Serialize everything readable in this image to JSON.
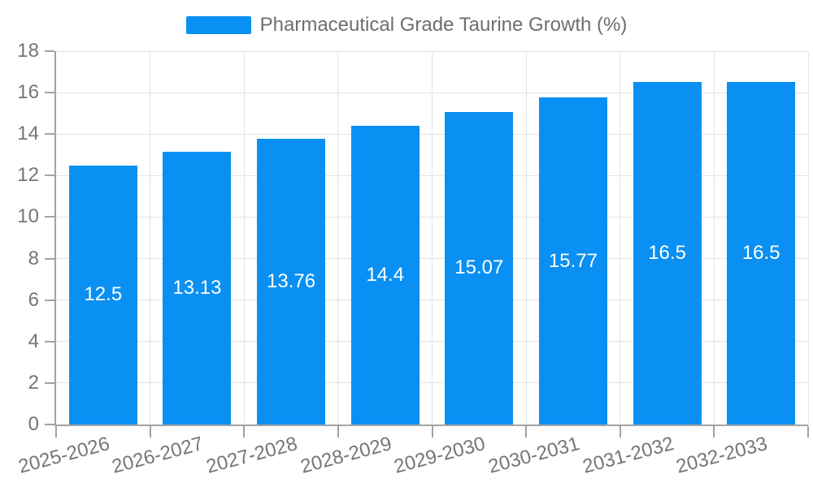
{
  "legend": {
    "items": [
      {
        "label": "Pharmaceutical Grade Taurine Growth (%)",
        "color": "#0a90f2"
      }
    ]
  },
  "chart_data": {
    "type": "bar",
    "title": "",
    "categories": [
      "2025-2026",
      "2026-2027",
      "2027-2028",
      "2028-2029",
      "2029-2030",
      "2030-2031",
      "2031-2032",
      "2032-2033"
    ],
    "series": [
      {
        "name": "Pharmaceutical Grade Taurine Growth (%)",
        "values": [
          12.5,
          13.13,
          13.76,
          14.4,
          15.07,
          15.77,
          16.5,
          16.5
        ],
        "color": "#0a90f2"
      }
    ],
    "bar_labels": [
      "12.5",
      "13.13",
      "13.76",
      "14.4",
      "15.07",
      "15.77",
      "16.5",
      "16.5"
    ],
    "xlabel": "",
    "ylabel": "",
    "ylim": [
      0,
      18
    ],
    "yticks": [
      0,
      2,
      4,
      6,
      8,
      10,
      12,
      14,
      16,
      18
    ],
    "grid": true,
    "legend_position": "top",
    "x_label_rotation_deg": -15
  },
  "style": {
    "bar_color": "#0a90f2",
    "bar_label_color": "#ffffff",
    "axis_text_color": "#757575",
    "legend_text_color": "#6e6e6e",
    "grid_color": "#e3e3e3",
    "axis_line_color": "#a3a3a3",
    "background": "#ffffff"
  }
}
